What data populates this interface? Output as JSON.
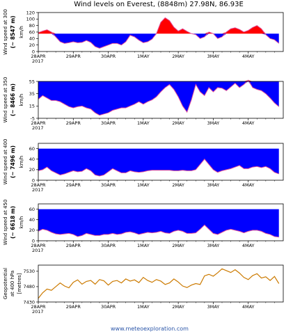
{
  "title": "Wind levels on Everest, (8848m) 27.98N, 86.93E",
  "footer": "www.meteoexploration.com",
  "colors": {
    "blue": "#0000ff",
    "red": "#ff0000",
    "line_pink": "#e0509a",
    "orange": "#cc7a00"
  },
  "x_dates": [
    "28APR\n2017",
    "29APR",
    "30APR",
    "1MAY",
    "2MAY",
    "3MAY",
    "4MAY"
  ],
  "chart_data": [
    {
      "type": "area",
      "ylabel_1": "Wind speed at 300",
      "ylabel_2": "(~ 8547 m)",
      "unit": "km/h",
      "ylim": [
        0,
        120
      ],
      "yticks": [
        0,
        20,
        40,
        60,
        80,
        100,
        120
      ],
      "threshold": 55,
      "x": [
        0,
        0.125,
        0.25,
        0.375,
        0.5,
        0.625,
        0.75,
        0.875,
        1.0,
        1.125,
        1.25,
        1.375,
        1.5,
        1.625,
        1.75,
        1.875,
        2.0,
        2.125,
        2.25,
        2.375,
        2.5,
        2.625,
        2.75,
        2.875,
        3.0,
        3.125,
        3.25,
        3.375,
        3.5,
        3.625,
        3.75,
        3.875,
        4.0,
        4.125,
        4.25,
        4.375,
        4.5,
        4.625,
        4.75,
        4.875,
        5.0,
        5.125,
        5.25,
        5.375,
        5.5,
        5.625,
        5.75,
        5.875,
        6.0,
        6.125,
        6.25,
        6.375,
        6.5,
        6.625,
        6.75,
        6.875
      ],
      "values": [
        58,
        63,
        67,
        60,
        45,
        30,
        25,
        27,
        30,
        27,
        28,
        34,
        28,
        15,
        10,
        15,
        20,
        25,
        25,
        20,
        30,
        50,
        45,
        35,
        27,
        30,
        38,
        55,
        90,
        104,
        95,
        75,
        63,
        70,
        62,
        55,
        52,
        40,
        45,
        60,
        55,
        40,
        45,
        60,
        70,
        73,
        68,
        60,
        65,
        74,
        80,
        70,
        52,
        40,
        36,
        25
      ]
    },
    {
      "type": "area",
      "ylabel_1": "Wind speed at 350",
      "ylabel_2": "(~ 8466 m)",
      "unit": "km/h",
      "ylim": [
        -5,
        55
      ],
      "yticks": [
        -5,
        15,
        35,
        55
      ],
      "threshold": 55,
      "x": [
        0,
        0.125,
        0.25,
        0.375,
        0.5,
        0.625,
        0.75,
        0.875,
        1.0,
        1.125,
        1.25,
        1.375,
        1.5,
        1.625,
        1.75,
        1.875,
        2.0,
        2.125,
        2.25,
        2.375,
        2.5,
        2.625,
        2.75,
        2.875,
        3.0,
        3.125,
        3.25,
        3.375,
        3.5,
        3.625,
        3.75,
        3.875,
        4.0,
        4.125,
        4.25,
        4.375,
        4.5,
        4.625,
        4.75,
        4.875,
        5.0,
        5.125,
        5.25,
        5.375,
        5.5,
        5.625,
        5.75,
        5.875,
        6.0,
        6.125,
        6.25,
        6.375,
        6.5,
        6.625,
        6.75,
        6.875
      ],
      "values": [
        26,
        32,
        28,
        24,
        24,
        22,
        18,
        14,
        12,
        14,
        15,
        12,
        10,
        4,
        0,
        2,
        4,
        8,
        10,
        12,
        12,
        15,
        18,
        22,
        18,
        22,
        25,
        30,
        38,
        45,
        50,
        42,
        30,
        15,
        5,
        25,
        50,
        38,
        32,
        45,
        38,
        45,
        44,
        40,
        46,
        52,
        45,
        50,
        57,
        45,
        42,
        40,
        35,
        28,
        20,
        14
      ]
    },
    {
      "type": "area",
      "ylabel_1": "Wind speed at 400",
      "ylabel_2": "(~ 7496 m)",
      "unit": "km/h",
      "ylim": [
        0,
        70
      ],
      "yticks": [
        0,
        20,
        40,
        60
      ],
      "threshold": 60,
      "x": [
        0,
        0.125,
        0.25,
        0.375,
        0.5,
        0.625,
        0.75,
        0.875,
        1.0,
        1.125,
        1.25,
        1.375,
        1.5,
        1.625,
        1.75,
        1.875,
        2.0,
        2.125,
        2.25,
        2.375,
        2.5,
        2.625,
        2.75,
        2.875,
        3.0,
        3.125,
        3.25,
        3.375,
        3.5,
        3.625,
        3.75,
        3.875,
        4.0,
        4.125,
        4.25,
        4.375,
        4.5,
        4.625,
        4.75,
        4.875,
        5.0,
        5.125,
        5.25,
        5.375,
        5.5,
        5.625,
        5.75,
        5.875,
        6.0,
        6.125,
        6.25,
        6.375,
        6.5,
        6.625,
        6.75,
        6.875
      ],
      "values": [
        18,
        20,
        25,
        18,
        14,
        10,
        12,
        15,
        18,
        16,
        17,
        22,
        18,
        10,
        8,
        10,
        16,
        22,
        18,
        14,
        14,
        18,
        16,
        15,
        16,
        18,
        19,
        19,
        19,
        19,
        19,
        18,
        18,
        19,
        18,
        18,
        20,
        30,
        40,
        30,
        20,
        15,
        18,
        20,
        22,
        25,
        28,
        22,
        22,
        25,
        26,
        24,
        26,
        22,
        15,
        12
      ]
    },
    {
      "type": "area",
      "ylabel_1": "Wind speed at 450",
      "ylabel_2": "(~ 6618 m)",
      "unit": "km/h",
      "ylim": [
        0,
        70
      ],
      "yticks": [
        0,
        20,
        40,
        60
      ],
      "threshold": 60,
      "x": [
        0,
        0.125,
        0.25,
        0.375,
        0.5,
        0.625,
        0.75,
        0.875,
        1.0,
        1.125,
        1.25,
        1.375,
        1.5,
        1.625,
        1.75,
        1.875,
        2.0,
        2.125,
        2.25,
        2.375,
        2.5,
        2.625,
        2.75,
        2.875,
        3.0,
        3.125,
        3.25,
        3.375,
        3.5,
        3.625,
        3.75,
        3.875,
        4.0,
        4.125,
        4.25,
        4.375,
        4.5,
        4.625,
        4.75,
        4.875,
        5.0,
        5.125,
        5.25,
        5.375,
        5.5,
        5.625,
        5.75,
        5.875,
        6.0,
        6.125,
        6.25,
        6.375,
        6.5,
        6.625,
        6.75,
        6.875
      ],
      "values": [
        18,
        22,
        20,
        16,
        13,
        12,
        13,
        14,
        12,
        8,
        10,
        14,
        12,
        10,
        10,
        12,
        12,
        14,
        12,
        13,
        16,
        17,
        15,
        12,
        14,
        16,
        15,
        16,
        18,
        15,
        14,
        18,
        20,
        18,
        14,
        14,
        15,
        22,
        30,
        22,
        14,
        12,
        16,
        20,
        22,
        20,
        18,
        15,
        18,
        20,
        20,
        18,
        14,
        12,
        8,
        7
      ]
    },
    {
      "type": "line",
      "ylabel_1": "Geopotential",
      "ylabel_2": "at 400 hPa",
      "ylabel_3": "[metres]",
      "ylim": [
        7430,
        7550
      ],
      "yticks": [
        7430,
        7480,
        7530
      ],
      "x": [
        0,
        0.125,
        0.25,
        0.375,
        0.5,
        0.625,
        0.75,
        0.875,
        1.0,
        1.125,
        1.25,
        1.375,
        1.5,
        1.625,
        1.75,
        1.875,
        2.0,
        2.125,
        2.25,
        2.375,
        2.5,
        2.625,
        2.75,
        2.875,
        3.0,
        3.125,
        3.25,
        3.375,
        3.5,
        3.625,
        3.75,
        3.875,
        4.0,
        4.125,
        4.25,
        4.375,
        4.5,
        4.625,
        4.75,
        4.875,
        5.0,
        5.125,
        5.25,
        5.375,
        5.5,
        5.625,
        5.75,
        5.875,
        6.0,
        6.125,
        6.25,
        6.375,
        6.5,
        6.625,
        6.75,
        6.875
      ],
      "values": [
        7442,
        7460,
        7472,
        7468,
        7480,
        7492,
        7482,
        7476,
        7494,
        7502,
        7488,
        7497,
        7500,
        7488,
        7503,
        7499,
        7485,
        7497,
        7500,
        7492,
        7505,
        7498,
        7502,
        7493,
        7510,
        7500,
        7494,
        7503,
        7498,
        7487,
        7492,
        7505,
        7495,
        7482,
        7477,
        7485,
        7490,
        7487,
        7515,
        7520,
        7514,
        7525,
        7538,
        7532,
        7526,
        7535,
        7524,
        7510,
        7503,
        7516,
        7522,
        7508,
        7512,
        7500,
        7513,
        7490
      ]
    }
  ]
}
